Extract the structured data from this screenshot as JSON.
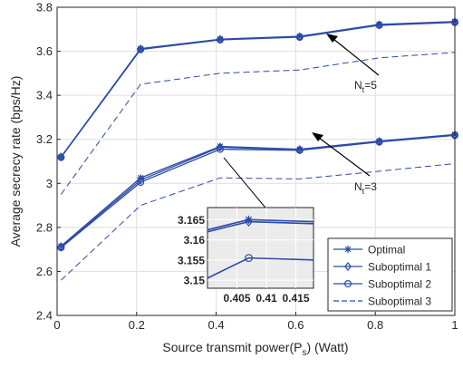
{
  "chart_data": {
    "type": "line",
    "title": "",
    "xlabel": "Source transmit power(P",
    "xlabel_sub": "s",
    "xlabel_tail": ") (Watt)",
    "ylabel": "Average secrecy rate (bps/Hz)",
    "xlim": [
      0,
      1
    ],
    "ylim": [
      2.4,
      3.8
    ],
    "x_ticks": [
      0,
      0.2,
      0.4,
      0.6,
      0.8,
      1
    ],
    "x_tick_labels": [
      "0",
      "0.2",
      "0.4",
      "0.6",
      "0.8",
      "1"
    ],
    "y_ticks": [
      2.4,
      2.6,
      2.8,
      3.0,
      3.2,
      3.4,
      3.6,
      3.8
    ],
    "y_tick_labels": [
      "2.4",
      "2.6",
      "2.8",
      "3",
      "3.2",
      "3.4",
      "3.6",
      "3.8"
    ],
    "grid": true,
    "legend_position": "bottom-right",
    "x": [
      0.01,
      0.21,
      0.41,
      0.61,
      0.81,
      1.0
    ],
    "series": [
      {
        "name": "Optimal",
        "group": "Nt5",
        "marker": "star",
        "dash": false,
        "color": "#2b4aa8",
        "values": [
          3.12,
          3.612,
          3.655,
          3.668,
          3.722,
          3.735
        ]
      },
      {
        "name": "Suboptimal 1",
        "group": "Nt5",
        "marker": "diamond",
        "dash": false,
        "color": "#2b4aa8",
        "values": [
          3.12,
          3.61,
          3.654,
          3.666,
          3.72,
          3.733
        ]
      },
      {
        "name": "Suboptimal 2",
        "group": "Nt5",
        "marker": "circle",
        "dash": false,
        "color": "#2b4aa8",
        "values": [
          3.118,
          3.608,
          3.652,
          3.664,
          3.718,
          3.731
        ]
      },
      {
        "name": "Suboptimal 3",
        "group": "Nt5",
        "marker": "none",
        "dash": true,
        "color": "#2b4aa8",
        "values": [
          2.95,
          3.45,
          3.5,
          3.515,
          3.57,
          3.595
        ]
      },
      {
        "name": "Optimal",
        "group": "Nt3",
        "marker": "star",
        "dash": false,
        "color": "#2b4aa8",
        "values": [
          2.715,
          3.025,
          3.168,
          3.155,
          3.192,
          3.222
        ]
      },
      {
        "name": "Suboptimal 1",
        "group": "Nt3",
        "marker": "diamond",
        "dash": false,
        "color": "#2b4aa8",
        "values": [
          2.712,
          3.015,
          3.164,
          3.153,
          3.19,
          3.22
        ]
      },
      {
        "name": "Suboptimal 2",
        "group": "Nt3",
        "marker": "circle",
        "dash": false,
        "color": "#2b4aa8",
        "values": [
          2.708,
          3.005,
          3.155,
          3.15,
          3.188,
          3.218
        ]
      },
      {
        "name": "Suboptimal 3",
        "group": "Nt3",
        "marker": "none",
        "dash": true,
        "color": "#2b4aa8",
        "values": [
          2.56,
          2.9,
          3.025,
          3.02,
          3.055,
          3.09
        ]
      }
    ],
    "annotations": [
      {
        "text": "N",
        "sub": "t",
        "tail": "=5"
      },
      {
        "text": "N",
        "sub": "t",
        "tail": "=3"
      }
    ],
    "legend": [
      "Optimal",
      "Suboptimal 1",
      "Suboptimal 2",
      "Suboptimal 3"
    ],
    "inset": {
      "xlim": [
        0.4,
        0.418
      ],
      "ylim": [
        3.148,
        3.168
      ],
      "x_ticks": [
        0.405,
        0.41,
        0.415
      ],
      "x_tick_labels": [
        "0.405",
        "0.41",
        "0.415"
      ],
      "y_ticks": [
        3.15,
        3.155,
        3.16,
        3.165
      ],
      "y_tick_labels": [
        "3.15",
        "3.155",
        "3.16",
        "3.165"
      ],
      "x": [
        0.4,
        0.407,
        0.418
      ],
      "series": [
        {
          "marker": "star",
          "values": [
            3.1625,
            3.165,
            3.1645
          ]
        },
        {
          "marker": "diamond",
          "values": [
            3.162,
            3.1645,
            3.164
          ]
        },
        {
          "marker": "circle",
          "values": [
            3.1505,
            3.1555,
            3.155
          ]
        }
      ]
    }
  }
}
